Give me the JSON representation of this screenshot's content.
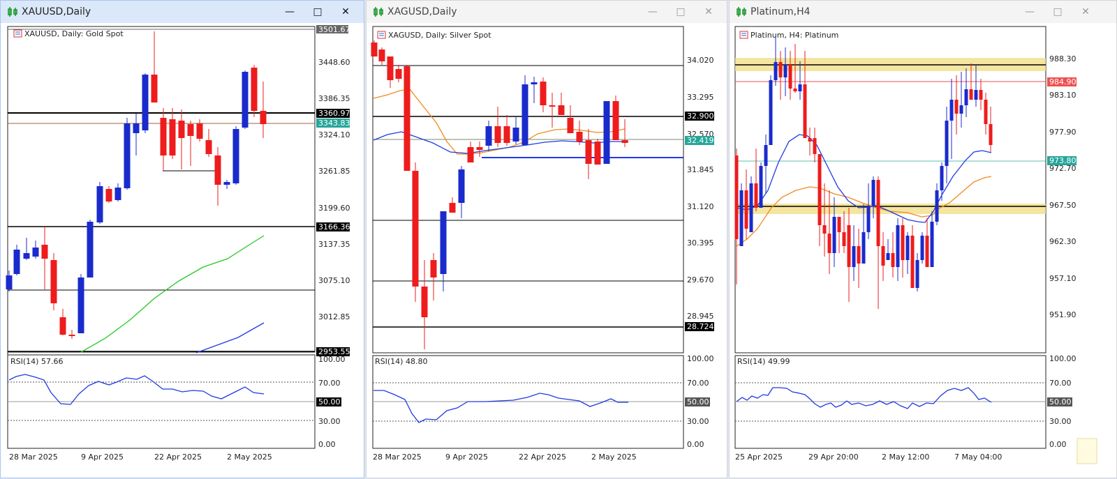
{
  "windows": [
    {
      "title": "XAUUSD,Daily",
      "active": true,
      "chart_label": "XAUUSD, Daily:  Gold Spot",
      "price_ticks": [
        "3448.60",
        "3386.35",
        "3324.10",
        "3261.85",
        "3199.60",
        "3137.35",
        "3075.10",
        "3012.85"
      ],
      "top_tick": "3501.67",
      "highlight_labels": [
        {
          "text": "3360.97",
          "bg": "#000000",
          "fg": "#ffffff"
        },
        {
          "text": "3343.83",
          "bg": "#26a69a",
          "fg": "#ffffff"
        },
        {
          "text": "3166.36",
          "bg": "#000000",
          "fg": "#ffffff"
        },
        {
          "text": "2953.55",
          "bg": "#000000",
          "fg": "#ffffff"
        }
      ],
      "rsi_label": "RSI(14) 57.66",
      "rsi_ticks": [
        "100.00",
        "70.00",
        "50.00",
        "30.00",
        "0.00"
      ],
      "date_labels": [
        "28 Mar 2025",
        "9 Apr 2025",
        "22 Apr 2025",
        "2 May 2025"
      ]
    },
    {
      "title": "XAGUSD,Daily",
      "active": false,
      "chart_label": "XAGUSD, Daily:  Silver Spot",
      "price_ticks": [
        "34.020",
        "33.295",
        "32.570",
        "31.845",
        "31.120",
        "30.395",
        "29.670",
        "28.945"
      ],
      "highlight_labels": [
        {
          "text": "32.900",
          "bg": "#000000",
          "fg": "#ffffff"
        },
        {
          "text": "32.419",
          "bg": "#26a69a",
          "fg": "#ffffff"
        },
        {
          "text": "28.724",
          "bg": "#000000",
          "fg": "#ffffff"
        }
      ],
      "rsi_label": "RSI(14) 48.80",
      "rsi_ticks": [
        "100.00",
        "70.00",
        "50.00",
        "30.00",
        "0.00"
      ],
      "date_labels": [
        "28 Mar 2025",
        "9 Apr 2025",
        "22 Apr 2025",
        "2 May 2025"
      ]
    },
    {
      "title": "Platinum,H4",
      "active": false,
      "chart_label": "Platinum, H4:  Platinum",
      "price_ticks": [
        "988.30",
        "983.10",
        "977.90",
        "972.70",
        "967.50",
        "962.30",
        "957.10",
        "951.90"
      ],
      "highlight_labels": [
        {
          "text": "984.90",
          "bg": "#f05050",
          "fg": "#ffffff"
        },
        {
          "text": "973.80",
          "bg": "#26a69a",
          "fg": "#ffffff"
        }
      ],
      "rsi_label": "RSI(14) 49.99",
      "rsi_ticks": [
        "100.00",
        "70.00",
        "50.00",
        "30.00",
        "0.00"
      ],
      "date_labels": [
        "25 Apr 2025",
        "29 Apr 20:00",
        "2 May 12:00",
        "7 May 04:00"
      ]
    }
  ],
  "colors": {
    "bull": "#1a2bcc",
    "bear": "#ee1c1c",
    "ma_fast": "#1f3ae0",
    "ma_slow": "#f08a1e",
    "ma_green": "#22c822",
    "zone": "#f1df8a"
  },
  "icons": {
    "chart": "candlestick-chart-icon",
    "minimize": "minimize-icon",
    "maximize": "maximize-icon",
    "close": "close-icon"
  }
}
